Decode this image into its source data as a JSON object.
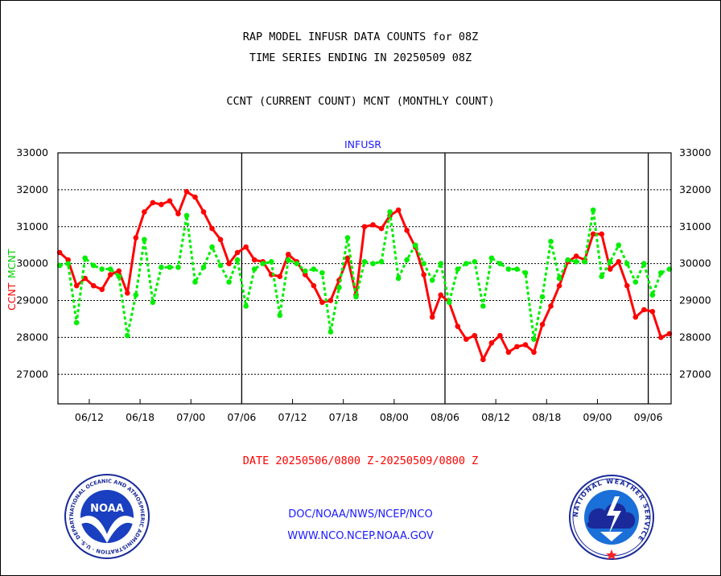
{
  "header": {
    "line1": "RAP MODEL INFUSR DATA COUNTS for 08Z",
    "line2": "TIME SERIES ENDING IN 20250509 08Z",
    "line3": "CCNT (CURRENT COUNT) MCNT (MONTHLY COUNT)"
  },
  "footer": {
    "date_range": "DATE 20250506/0800 Z-20250509/0800 Z",
    "link1": "DOC/NOAA/NWS/NCEP/NCO",
    "link2": "WWW.NCO.NCEP.NOAA.GOV"
  },
  "logos": {
    "noaa": {
      "text": "NOAA",
      "ring_text": "NATIONAL OCEANIC AND ATMOSPHERIC ADMINISTRATION · U.S. DEPARTMENT OF COMMERCE"
    },
    "nws": {
      "ring_text": "NATIONAL WEATHER SERVICE"
    }
  },
  "colors": {
    "ccnt": "#ff0000",
    "mcnt": "#00ee00",
    "axis": "#000000",
    "label_blue": "#1a1aff"
  },
  "chart_data": {
    "type": "line",
    "title": "INFUSR",
    "ylabel_left": [
      "CCNT",
      "MCNT"
    ],
    "ylim": [
      26200,
      33000
    ],
    "yticks": [
      27000,
      28000,
      29000,
      30000,
      31000,
      32000,
      33000
    ],
    "ytick_labels": [
      "27000",
      "28000",
      "29000",
      "30000",
      "31000",
      "32000",
      "33000"
    ],
    "xticks": [
      {
        "label": "06/12",
        "pos": 3.5
      },
      {
        "label": "06/18",
        "pos": 9.5
      },
      {
        "label": "07/00",
        "pos": 15.5
      },
      {
        "label": "07/06",
        "pos": 21.5
      },
      {
        "label": "07/12",
        "pos": 27.5
      },
      {
        "label": "07/18",
        "pos": 33.5
      },
      {
        "label": "08/00",
        "pos": 39.5
      },
      {
        "label": "08/06",
        "pos": 45.5
      },
      {
        "label": "08/12",
        "pos": 51.5
      },
      {
        "label": "08/18",
        "pos": 57.5
      },
      {
        "label": "09/00",
        "pos": 63.5
      },
      {
        "label": "09/06",
        "pos": 69.5
      }
    ],
    "xlim": [
      -0.2,
      72.2
    ],
    "day_boundaries": [
      22,
      46,
      70
    ],
    "grid": true,
    "series": [
      {
        "name": "CCNT",
        "values": [
          30300,
          30100,
          29400,
          29600,
          29400,
          29300,
          29700,
          29800,
          29200,
          30700,
          31400,
          31650,
          31600,
          31700,
          31350,
          31950,
          31800,
          31400,
          30950,
          30650,
          30000,
          30300,
          30450,
          30100,
          30050,
          29700,
          29650,
          30250,
          30050,
          29700,
          29400,
          28950,
          29000,
          29550,
          30150,
          29150,
          31000,
          31050,
          30950,
          31300,
          31450,
          30900,
          30450,
          29700,
          28550,
          29150,
          28950,
          28300,
          27950,
          28050,
          27400,
          27850,
          28050,
          27600,
          27750,
          27800,
          27600,
          28350,
          28850,
          29400,
          30050,
          30200,
          30100,
          30800,
          30800,
          29850,
          30050,
          29400,
          28550,
          28750,
          28700,
          28000,
          28100
        ]
      },
      {
        "name": "MCNT",
        "values": [
          29950,
          30000,
          28400,
          30150,
          29950,
          29850,
          29850,
          29650,
          28050,
          29150,
          30650,
          28950,
          29900,
          29900,
          29900,
          31300,
          29500,
          29900,
          30450,
          29950,
          29500,
          30100,
          28850,
          29850,
          30000,
          30050,
          28600,
          30100,
          30000,
          29800,
          29850,
          29750,
          28150,
          29350,
          30700,
          29100,
          30050,
          30000,
          30050,
          31400,
          29600,
          30100,
          30500,
          30000,
          29550,
          30000,
          28950,
          29850,
          30000,
          30050,
          28850,
          30150,
          30000,
          29850,
          29850,
          29750,
          27950,
          29100,
          30600,
          29600,
          30100,
          30050,
          30050,
          31450,
          29650,
          30050,
          30500,
          30000,
          29500,
          30000,
          29150,
          29750,
          29850
        ]
      }
    ]
  }
}
